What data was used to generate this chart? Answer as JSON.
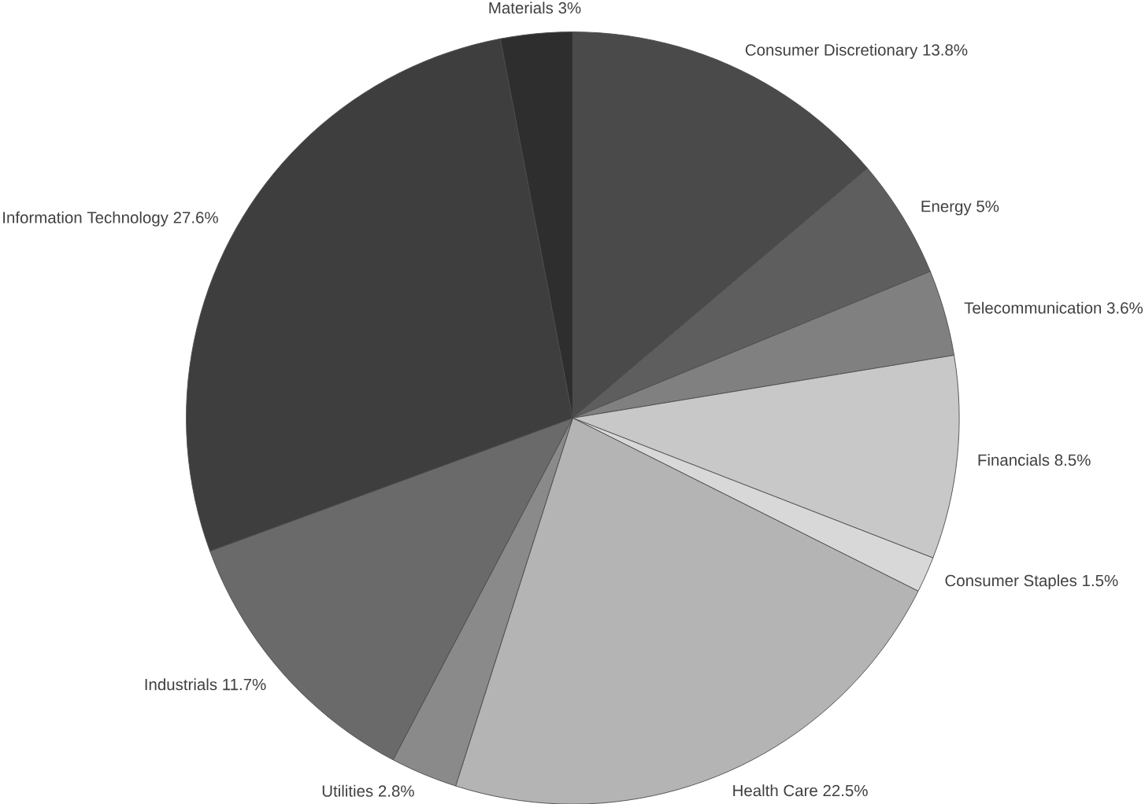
{
  "chart_data": {
    "type": "pie",
    "categories": [
      "Consumer Discretionary",
      "Energy",
      "Telecommunication",
      "Financials",
      "Consumer Staples",
      "Health Care",
      "Utilities",
      "Industrials",
      "Information Technology",
      "Materials"
    ],
    "values": [
      13.8,
      5,
      3.6,
      8.5,
      1.5,
      22.5,
      2.8,
      11.7,
      27.6,
      3
    ],
    "value_labels": [
      "13.8%",
      "5%",
      "3.6%",
      "8.5%",
      "1.5%",
      "22.5%",
      "2.8%",
      "11.7%",
      "27.6%",
      "3%"
    ],
    "colors": [
      "#4a4a4a",
      "#5e5e5e",
      "#808080",
      "#c8c8c8",
      "#d8d8d8",
      "#b4b4b4",
      "#8a8a8a",
      "#6a6a6a",
      "#3e3e3e",
      "#2e2e2e"
    ]
  }
}
